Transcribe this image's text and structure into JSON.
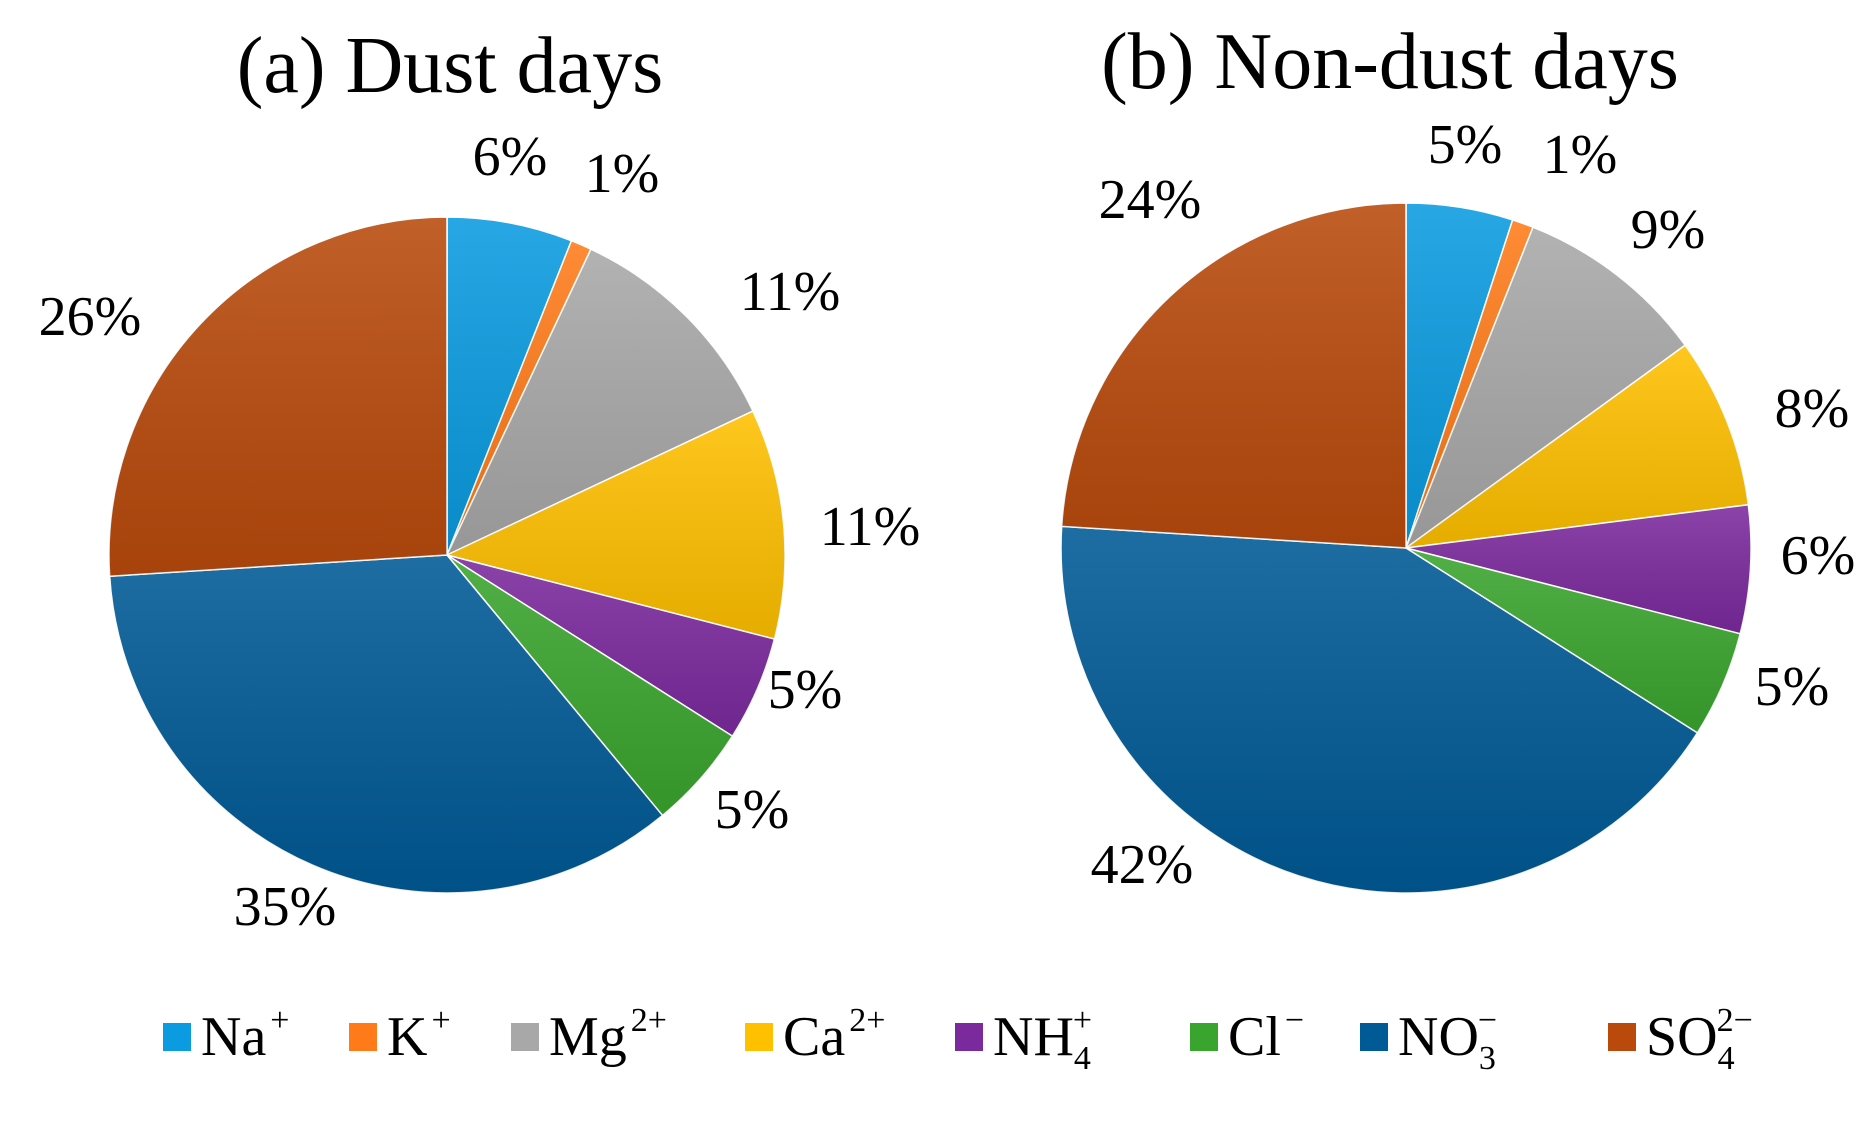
{
  "chart_data": [
    {
      "type": "pie",
      "title": "(a) Dust days",
      "categories": [
        "Na+",
        "K+",
        "Mg2+",
        "Ca2+",
        "NH4+",
        "Cl−",
        "NO3−",
        "SO42−"
      ],
      "values": [
        6,
        1,
        11,
        11,
        5,
        5,
        35,
        26
      ],
      "labels": [
        "6%",
        "1%",
        "11%",
        "11%",
        "5%",
        "5%",
        "35%",
        "26%"
      ],
      "start_angle_deg": 0,
      "direction": "clockwise"
    },
    {
      "type": "pie",
      "title": "(b) Non-dust days",
      "categories": [
        "Na+",
        "K+",
        "Mg2+",
        "Ca2+",
        "NH4+",
        "Cl−",
        "NO3−",
        "SO42−"
      ],
      "values": [
        5,
        1,
        9,
        8,
        6,
        5,
        42,
        24
      ],
      "labels": [
        "5%",
        "1%",
        "9%",
        "8%",
        "6%",
        "5%",
        "42%",
        "24%"
      ],
      "start_angle_deg": 0,
      "direction": "clockwise"
    }
  ],
  "legend": {
    "placement": "bottom",
    "items": [
      {
        "name": "Na+",
        "base": "Na",
        "sup": "+",
        "sub": "",
        "color": "#0a9be0"
      },
      {
        "name": "K+",
        "base": "K",
        "sup": "+",
        "sub": "",
        "color": "#ff7b1a"
      },
      {
        "name": "Mg2+",
        "base": "Mg",
        "sup": "2+",
        "sub": "",
        "color": "#a8a8a8"
      },
      {
        "name": "Ca2+",
        "base": "Ca",
        "sup": "2+",
        "sub": "",
        "color": "#ffc000"
      },
      {
        "name": "NH4+",
        "base": "NH",
        "sup": "+",
        "sub": "4",
        "color": "#7b2a9e"
      },
      {
        "name": "Cl−",
        "base": "Cl",
        "sup": "−",
        "sub": "",
        "color": "#3aa52e"
      },
      {
        "name": "NO3−",
        "base": "NO",
        "sup": "−",
        "sub": "3",
        "color": "#005a96"
      },
      {
        "name": "SO42−",
        "base": "SO",
        "sup": "2−",
        "sub": "4",
        "color": "#b94a0c"
      }
    ]
  }
}
